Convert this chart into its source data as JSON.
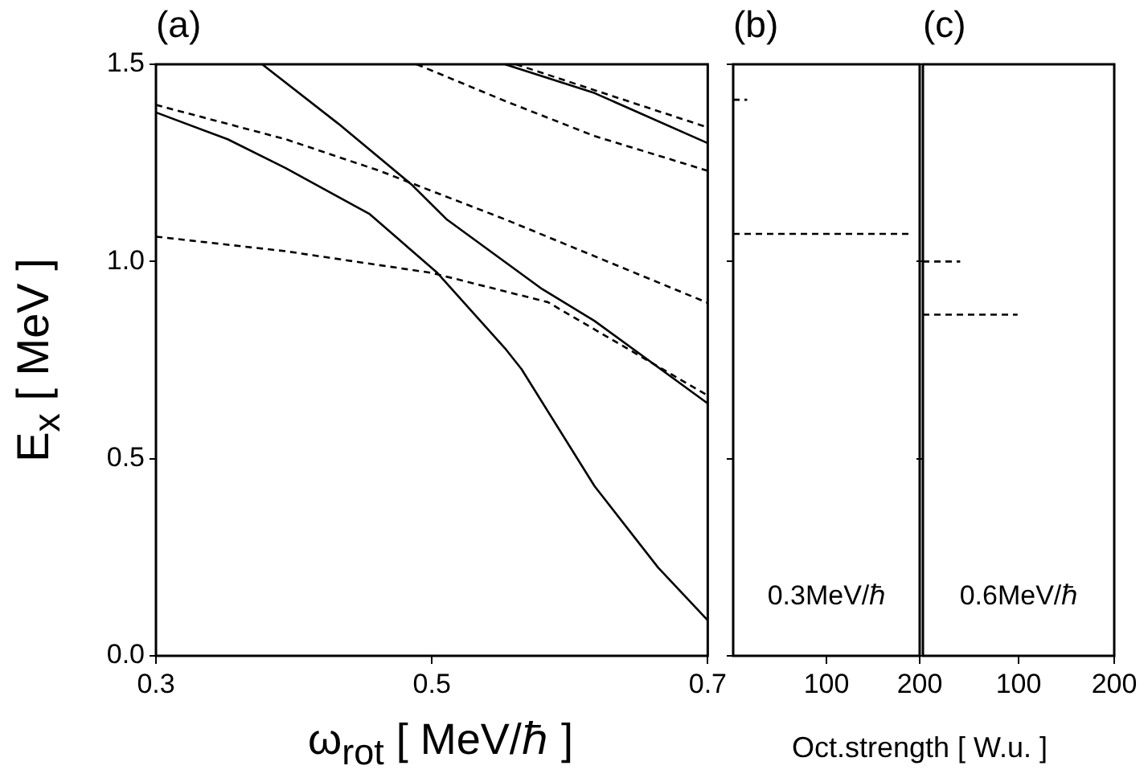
{
  "chart_data": [
    {
      "type": "line",
      "title": "(a)",
      "xlabel": "ω$_{rot}$ [ MeV/ℏ ]",
      "ylabel": "E$_{x}$ [ MeV ]",
      "xlim": [
        0.3,
        0.7
      ],
      "xticks": [
        0.3,
        0.5,
        0.7
      ],
      "ylim": [
        0,
        1.5
      ],
      "yticks": [
        {
          "value": 0,
          "label": "0.0"
        },
        0.5,
        {
          "value": 1,
          "label": "1.0"
        },
        1.5
      ],
      "grid": false,
      "marker": "none",
      "series": [
        {
          "color": "#000000",
          "line_style": "solid",
          "x": [
            0.3,
            0.352,
            0.394,
            0.455,
            0.477,
            0.504,
            0.553,
            0.565,
            0.618,
            0.664,
            0.7
          ],
          "values": [
            1.378,
            1.31,
            1.237,
            1.12,
            1.053,
            0.971,
            0.78,
            0.727,
            0.43,
            0.224,
            0.09
          ]
        },
        {
          "color": "#000000",
          "line_style": "solid",
          "x": [
            0.377,
            0.432,
            0.485,
            0.511,
            0.58,
            0.618,
            0.7
          ],
          "values": [
            1.5,
            1.35,
            1.196,
            1.106,
            0.93,
            0.849,
            0.64
          ]
        },
        {
          "color": "#000000",
          "line_style": "solid",
          "x": [
            0.553,
            0.618,
            0.7
          ],
          "values": [
            1.5,
            1.427,
            1.3
          ]
        },
        {
          "color": "#000000",
          "line_style": "dashed",
          "x": [
            0.489,
            0.553,
            0.618,
            0.7
          ],
          "values": [
            1.5,
            1.407,
            1.318,
            1.23
          ]
        },
        {
          "color": "#000000",
          "line_style": "dashed",
          "x": [
            0.561,
            0.7
          ],
          "values": [
            1.5,
            1.34
          ]
        },
        {
          "color": "#000000",
          "line_style": "dashed",
          "x": [
            0.3,
            0.394,
            0.462,
            0.553,
            0.7
          ],
          "values": [
            1.397,
            1.31,
            1.23,
            1.107,
            0.895
          ]
        },
        {
          "color": "#000000",
          "line_style": "dashed",
          "x": [
            0.3,
            0.394,
            0.5,
            0.584,
            0.7
          ],
          "values": [
            1.063,
            1.026,
            0.971,
            0.897,
            0.66
          ]
        }
      ]
    },
    {
      "type": "line",
      "title": "(b)",
      "xlabel": "Oct.strength [ W.u. ]",
      "xlim": [
        0,
        200
      ],
      "xticks": [
        100,
        200
      ],
      "ylim": [
        0,
        1.5
      ],
      "yticks": [
        0,
        0.5,
        1,
        1.5
      ],
      "tick_labels": "x",
      "grid": false,
      "marker": "none",
      "annotations": [
        "0.3MeV/ℏ"
      ],
      "series": [
        {
          "color": "#000000",
          "line_style": "dashed",
          "x": [
            0,
            15
          ],
          "values": [
            1.41,
            1.41
          ]
        },
        {
          "color": "#000000",
          "line_style": "dashed",
          "x": [
            0,
            188
          ],
          "values": [
            1.07,
            1.07
          ]
        }
      ]
    },
    {
      "type": "line",
      "title": "(c)",
      "xlim": [
        0,
        200
      ],
      "xticks": [
        100,
        200
      ],
      "ylim": [
        0,
        1.5
      ],
      "yticks": [
        0,
        0.5,
        1,
        1.5
      ],
      "tick_labels": "x",
      "grid": false,
      "marker": "none",
      "annotations": [
        "0.6MeV/ℏ"
      ],
      "series": [
        {
          "color": "#000000",
          "line_style": "dashed",
          "x": [
            0,
            39
          ],
          "values": [
            1.0,
            1.0
          ]
        },
        {
          "color": "#000000",
          "line_style": "dashed",
          "x": [
            0,
            99
          ],
          "values": [
            0.865,
            0.865
          ]
        }
      ]
    }
  ]
}
